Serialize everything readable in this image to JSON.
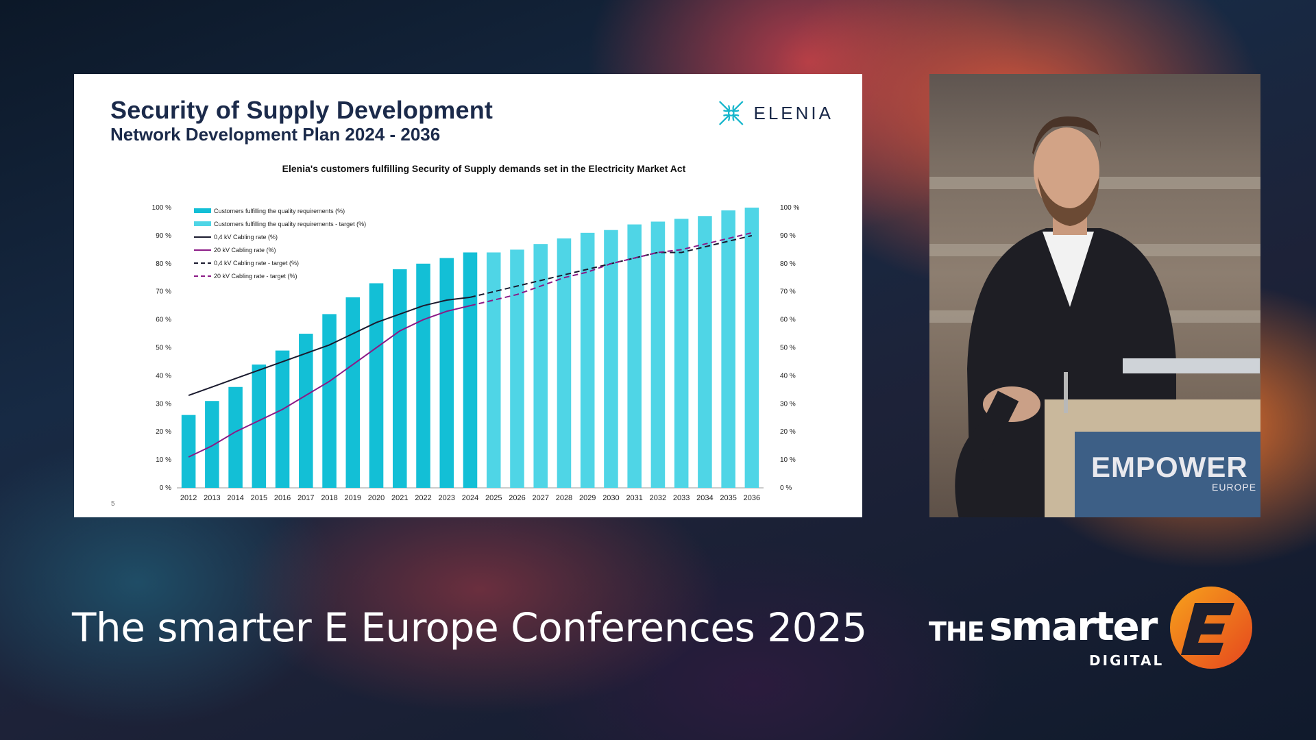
{
  "slide": {
    "title": "Security of Supply Development",
    "subtitle": "Network Development Plan 2024 - 2036",
    "brand": "ELENIA",
    "page_number": "5"
  },
  "footer": {
    "conference_title": "The smarter E Europe Conferences 2025",
    "logo_the": "THE",
    "logo_smarter": "smarter",
    "logo_digital": "DIGITAL"
  },
  "speaker": {
    "podium_brand": "EMPOWER",
    "podium_sub": "EUROPE"
  },
  "colors": {
    "bar_actual": "#13bfd6",
    "bar_target": "#4fd5e6",
    "line_04kv": "#1a1a2e",
    "line_20kv": "#8b1a86",
    "title": "#1b2a4a",
    "logo_accent": "#f07a1a"
  },
  "chart_data": {
    "type": "bar",
    "title": "Elenia's customers fulfilling Security of Supply demands set in the Electricity Market Act",
    "categories": [
      "2012",
      "2013",
      "2014",
      "2015",
      "2016",
      "2017",
      "2018",
      "2019",
      "2020",
      "2021",
      "2022",
      "2023",
      "2024",
      "2025",
      "2026",
      "2027",
      "2028",
      "2029",
      "2030",
      "2031",
      "2032",
      "2033",
      "2034",
      "2035",
      "2036"
    ],
    "ylim": [
      0,
      100
    ],
    "y_ticks": [
      "0 %",
      "10 %",
      "20 %",
      "30 %",
      "40 %",
      "50 %",
      "60 %",
      "70 %",
      "80 %",
      "90 %",
      "100 %"
    ],
    "series": [
      {
        "name": "Customers fulfilling the quality requirements (%)",
        "kind": "bar",
        "x": [
          "2012",
          "2013",
          "2014",
          "2015",
          "2016",
          "2017",
          "2018",
          "2019",
          "2020",
          "2021",
          "2022",
          "2023",
          "2024"
        ],
        "values": [
          26,
          31,
          36,
          44,
          49,
          55,
          62,
          68,
          73,
          78,
          80,
          82,
          84
        ]
      },
      {
        "name": "Customers fulfilling the quality requirements - target (%)",
        "kind": "bar_target",
        "x": [
          "2025",
          "2026",
          "2027",
          "2028",
          "2029",
          "2030",
          "2031",
          "2032",
          "2033",
          "2034",
          "2035",
          "2036"
        ],
        "values": [
          84,
          85,
          87,
          89,
          91,
          92,
          94,
          95,
          96,
          97,
          99,
          100
        ]
      },
      {
        "name": "0,4 kV Cabling rate (%)",
        "kind": "line",
        "x": [
          "2012",
          "2013",
          "2014",
          "2015",
          "2016",
          "2017",
          "2018",
          "2019",
          "2020",
          "2021",
          "2022",
          "2023",
          "2024"
        ],
        "values": [
          33,
          36,
          39,
          42,
          45,
          48,
          51,
          55,
          59,
          62,
          65,
          67,
          68
        ]
      },
      {
        "name": "20 kV Cabling rate (%)",
        "kind": "line",
        "x": [
          "2012",
          "2013",
          "2014",
          "2015",
          "2016",
          "2017",
          "2018",
          "2019",
          "2020",
          "2021",
          "2022",
          "2023",
          "2024"
        ],
        "values": [
          11,
          15,
          20,
          24,
          28,
          33,
          38,
          44,
          50,
          56,
          60,
          63,
          65
        ]
      },
      {
        "name": "0,4 kV Cabling rate - target (%)",
        "kind": "line_dashed",
        "x": [
          "2024",
          "2025",
          "2026",
          "2027",
          "2028",
          "2029",
          "2030",
          "2031",
          "2032",
          "2033",
          "2034",
          "2035",
          "2036"
        ],
        "values": [
          68,
          70,
          72,
          74,
          76,
          78,
          80,
          82,
          84,
          84,
          86,
          88,
          90
        ]
      },
      {
        "name": "20 kV Cabling rate - target (%)",
        "kind": "line_dashed",
        "x": [
          "2024",
          "2025",
          "2026",
          "2027",
          "2028",
          "2029",
          "2030",
          "2031",
          "2032",
          "2033",
          "2034",
          "2035",
          "2036"
        ],
        "values": [
          65,
          67,
          69,
          72,
          75,
          77,
          80,
          82,
          84,
          85,
          87,
          89,
          91
        ]
      }
    ],
    "legend_placement": "top-left",
    "grid": false
  }
}
